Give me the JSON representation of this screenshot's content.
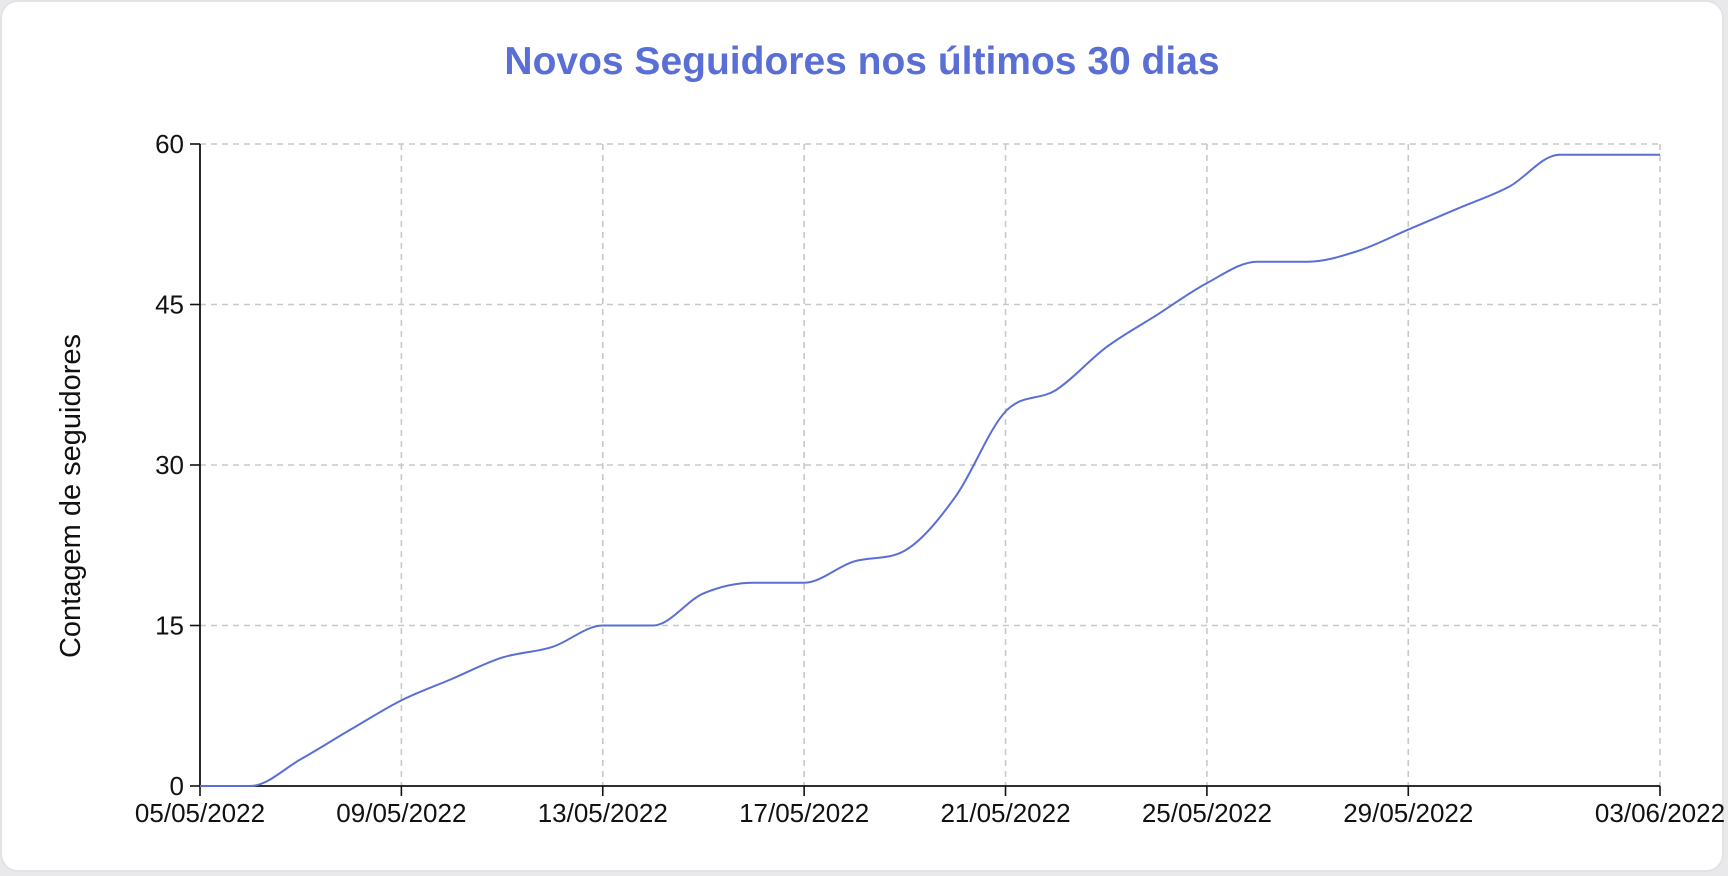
{
  "chart_data": {
    "type": "line",
    "title": "Novos Seguidores nos últimos 30 dias",
    "xlabel": "",
    "ylabel": "Contagem de seguidores",
    "x_type": "date",
    "xlim": [
      "05/05/2022",
      "03/06/2022"
    ],
    "ylim": [
      0,
      60
    ],
    "x_tick_labels": [
      "05/05/2022",
      "09/05/2022",
      "13/05/2022",
      "17/05/2022",
      "21/05/2022",
      "25/05/2022",
      "29/05/2022",
      "03/06/2022"
    ],
    "y_ticks": [
      0,
      15,
      30,
      45,
      60
    ],
    "grid": true,
    "grid_style": "dashed",
    "legend": "none",
    "colors": {
      "line": "#5a6fd6",
      "title": "#5a6fd6",
      "grid": "#c8c8c8",
      "axis": "#111111"
    },
    "series": [
      {
        "x": [
          "05/05/2022",
          "06/05/2022",
          "07/05/2022",
          "08/05/2022",
          "09/05/2022",
          "10/05/2022",
          "11/05/2022",
          "12/05/2022",
          "13/05/2022",
          "14/05/2022",
          "15/05/2022",
          "16/05/2022",
          "17/05/2022",
          "18/05/2022",
          "19/05/2022",
          "20/05/2022",
          "21/05/2022",
          "22/05/2022",
          "23/05/2022",
          "24/05/2022",
          "25/05/2022",
          "26/05/2022",
          "27/05/2022",
          "28/05/2022",
          "29/05/2022",
          "30/05/2022",
          "31/05/2022",
          "01/06/2022",
          "02/06/2022",
          "03/06/2022"
        ],
        "values": [
          0,
          0,
          2.5,
          5.3,
          8,
          10,
          12,
          13,
          15,
          15,
          18,
          19,
          19,
          21,
          22,
          27,
          35,
          37,
          41,
          44,
          47,
          49,
          49,
          50,
          52,
          54,
          56,
          59,
          59,
          59
        ]
      }
    ]
  }
}
